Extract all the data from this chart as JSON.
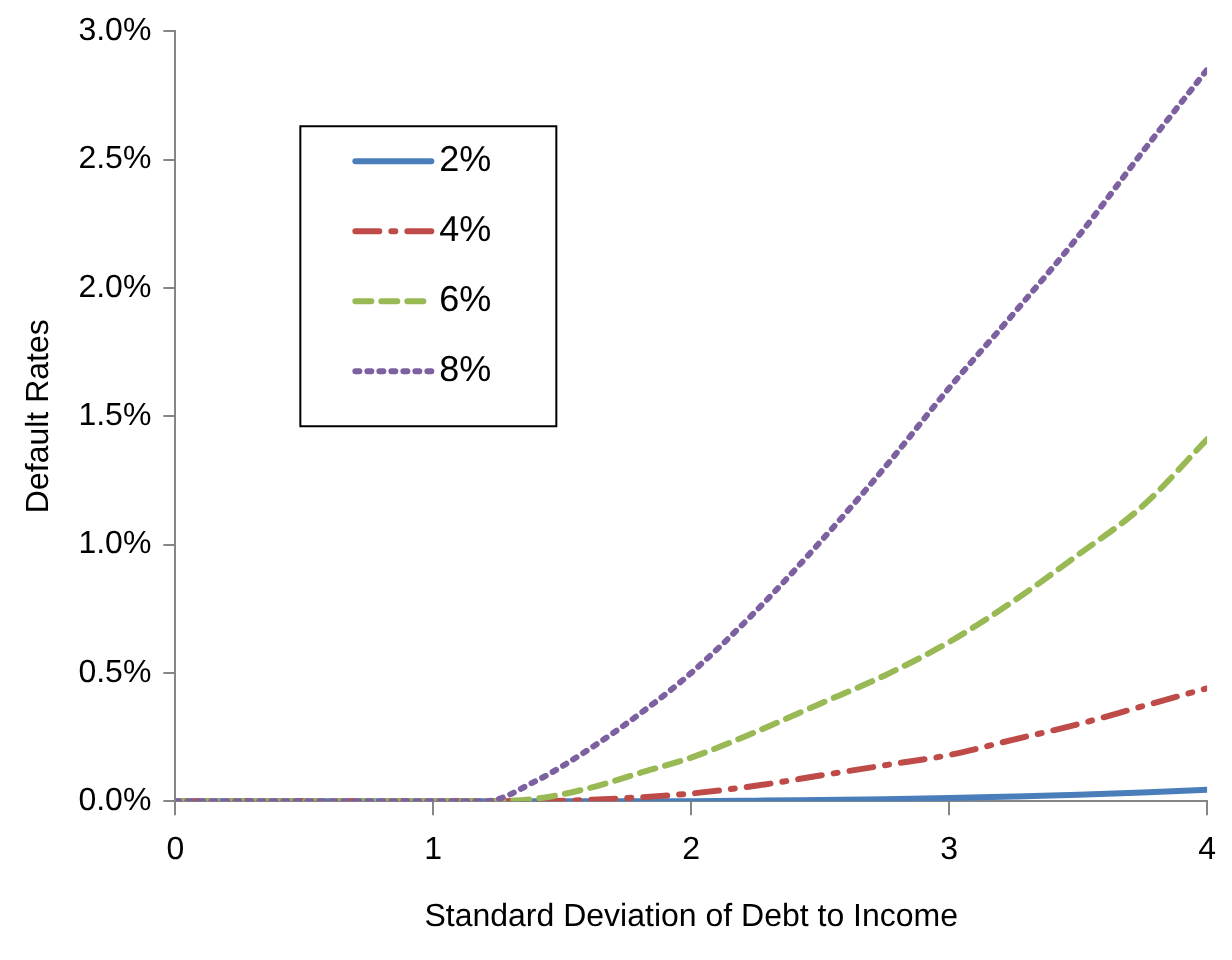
{
  "chart_data": {
    "type": "line",
    "xlabel": "Standard Deviation of Debt to Income",
    "ylabel": "Default Rates",
    "x": [
      0,
      0.5,
      1,
      1.2,
      1.4,
      1.6,
      1.8,
      2,
      2.25,
      2.5,
      2.75,
      3,
      3.25,
      3.5,
      3.75,
      4
    ],
    "series": [
      {
        "name": "2%",
        "color": "#4a7ebb",
        "line_style": "solid",
        "values": [
          0,
          0,
          0,
          0,
          0,
          0,
          0,
          0,
          0.002,
          0.005,
          0.008,
          0.012,
          0.018,
          0.025,
          0.034,
          0.045
        ]
      },
      {
        "name": "4%",
        "color": "#be4b48",
        "line_style": "dashdot",
        "values": [
          0,
          0,
          0,
          0,
          0,
          0.005,
          0.015,
          0.03,
          0.06,
          0.1,
          0.14,
          0.18,
          0.24,
          0.3,
          0.37,
          0.44
        ]
      },
      {
        "name": "6%",
        "color": "#98b954",
        "line_style": "dashed",
        "values": [
          0,
          0,
          0,
          0,
          0.01,
          0.05,
          0.11,
          0.17,
          0.27,
          0.38,
          0.49,
          0.62,
          0.78,
          0.96,
          1.15,
          1.41
        ]
      },
      {
        "name": "8%",
        "color": "#7d60a0",
        "line_style": "dotted",
        "values": [
          0,
          0,
          0,
          0,
          0.08,
          0.2,
          0.34,
          0.5,
          0.74,
          1.01,
          1.3,
          1.61,
          1.9,
          2.2,
          2.53,
          2.85
        ]
      }
    ],
    "xlim": [
      0,
      4
    ],
    "xticks": [
      0,
      1,
      2,
      3,
      4
    ],
    "ylim": [
      0,
      3
    ],
    "yticks": [
      {
        "value": 0,
        "label": "0.0%"
      },
      {
        "value": 0.5,
        "label": "0.5%"
      },
      {
        "value": 1,
        "label": "1.0%"
      },
      {
        "value": 1.5,
        "label": "1.5%"
      },
      {
        "value": 2,
        "label": "2.0%"
      },
      {
        "value": 2.5,
        "label": "2.5%"
      },
      {
        "value": 3,
        "label": "3.0%"
      }
    ],
    "grid": false,
    "legend": "top left",
    "marker": "none"
  }
}
